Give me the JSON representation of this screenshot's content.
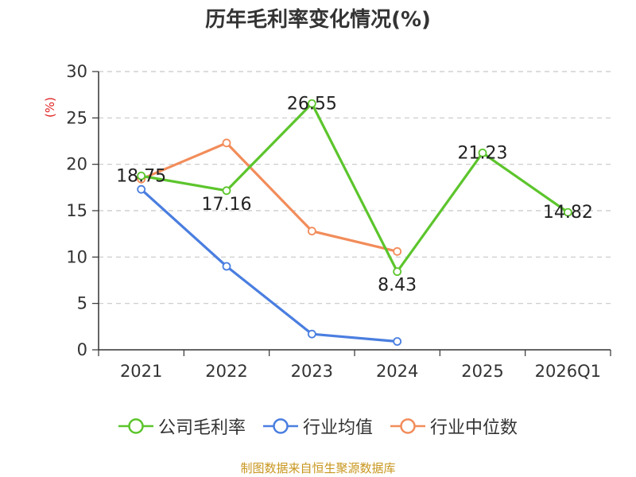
{
  "chart_data": {
    "type": "line",
    "title": "历年毛利率变化情况(%)",
    "ylabel": "(%)",
    "categories": [
      "2021",
      "2022",
      "2023",
      "2024",
      "2025",
      "2026Q1"
    ],
    "ylim": [
      0,
      30
    ],
    "yticks": [
      0,
      5,
      10,
      15,
      20,
      25,
      30
    ],
    "grid": true,
    "legend_position": "bottom",
    "series": [
      {
        "name": "公司毛利率",
        "color": "#5cc52c",
        "labels": true,
        "values": [
          18.75,
          17.16,
          26.55,
          8.43,
          21.23,
          14.82
        ]
      },
      {
        "name": "行业均值",
        "color": "#4a7ee0",
        "labels": false,
        "values": [
          17.3,
          9.0,
          1.7,
          0.9,
          null,
          null
        ]
      },
      {
        "name": "行业中位数",
        "color": "#f28c5a",
        "labels": false,
        "values": [
          18.4,
          22.3,
          12.8,
          10.6,
          null,
          null
        ]
      }
    ]
  },
  "source": "制图数据来自恒生聚源数据库"
}
